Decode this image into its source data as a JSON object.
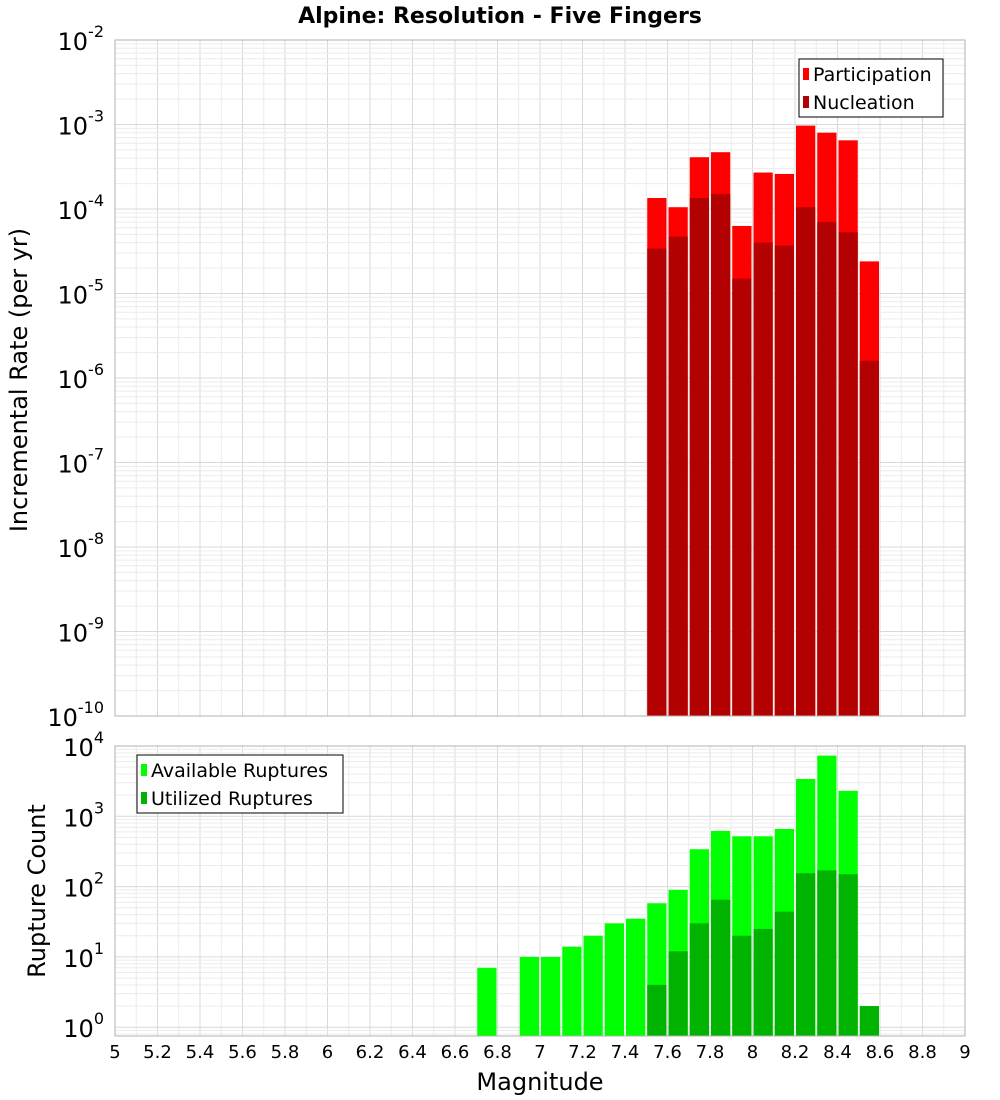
{
  "title": "Alpine: Resolution - Five Fingers",
  "x_label": "Magnitude",
  "chart_data": [
    {
      "type": "bar",
      "scale": "log",
      "ylabel": "Incremental Rate (per yr)",
      "ylim": [
        1e-10,
        0.01
      ],
      "y_ticks": [
        {
          "base": "10",
          "exp": "-10"
        },
        {
          "base": "10",
          "exp": "-9"
        },
        {
          "base": "10",
          "exp": "-8"
        },
        {
          "base": "10",
          "exp": "-7"
        },
        {
          "base": "10",
          "exp": "-6"
        },
        {
          "base": "10",
          "exp": "-5"
        },
        {
          "base": "10",
          "exp": "-4"
        },
        {
          "base": "10",
          "exp": "-3"
        },
        {
          "base": "10",
          "exp": "-2"
        }
      ],
      "legend_position": "top-right",
      "grid": true,
      "x": [
        7.55,
        7.65,
        7.75,
        7.85,
        7.95,
        8.05,
        8.15,
        8.25,
        8.35,
        8.45,
        8.55
      ],
      "series": [
        {
          "name": "Participation",
          "color": "#ff0000",
          "values": [
            0.000135,
            0.000105,
            0.00041,
            0.00047,
            6.3e-05,
            0.00027,
            0.00026,
            0.00097,
            0.0008,
            0.00065,
            2.4e-05
          ]
        },
        {
          "name": "Nucleation",
          "color": "#b30000",
          "values": [
            3.4e-05,
            4.7e-05,
            0.000135,
            0.00015,
            1.5e-05,
            4e-05,
            3.7e-05,
            0.000105,
            7e-05,
            5.3e-05,
            1.6e-06
          ]
        }
      ]
    },
    {
      "type": "bar",
      "scale": "log",
      "ylabel": "Rupture Count",
      "ylim": [
        0.75,
        10000
      ],
      "y_ticks": [
        {
          "base": "10",
          "exp": "0"
        },
        {
          "base": "10",
          "exp": "1"
        },
        {
          "base": "10",
          "exp": "2"
        },
        {
          "base": "10",
          "exp": "3"
        },
        {
          "base": "10",
          "exp": "4"
        }
      ],
      "legend_position": "top-left",
      "grid": true,
      "x": [
        6.75,
        6.95,
        7.05,
        7.15,
        7.25,
        7.35,
        7.45,
        7.55,
        7.65,
        7.75,
        7.85,
        7.95,
        8.05,
        8.15,
        8.25,
        8.35,
        8.45,
        8.55
      ],
      "series": [
        {
          "name": "Available Ruptures",
          "color": "#00ff00",
          "values": [
            7,
            10,
            10,
            14,
            20,
            30,
            35,
            58,
            90,
            340,
            620,
            520,
            520,
            660,
            3400,
            7300,
            2300,
            0
          ]
        },
        {
          "name": "Utilized Ruptures",
          "color": "#00b300",
          "values": [
            0,
            0,
            0,
            0,
            0,
            0,
            0,
            4,
            12,
            30,
            65,
            20,
            25,
            44,
            155,
            170,
            150,
            2
          ]
        }
      ]
    }
  ],
  "x_axis": {
    "min": 5,
    "max": 9,
    "ticks": [
      "5",
      "5.2",
      "5.4",
      "5.6",
      "5.8",
      "6",
      "6.2",
      "6.4",
      "6.6",
      "6.8",
      "7",
      "7.2",
      "7.4",
      "7.6",
      "7.8",
      "8",
      "8.2",
      "8.4",
      "8.6",
      "8.8",
      "9"
    ]
  }
}
